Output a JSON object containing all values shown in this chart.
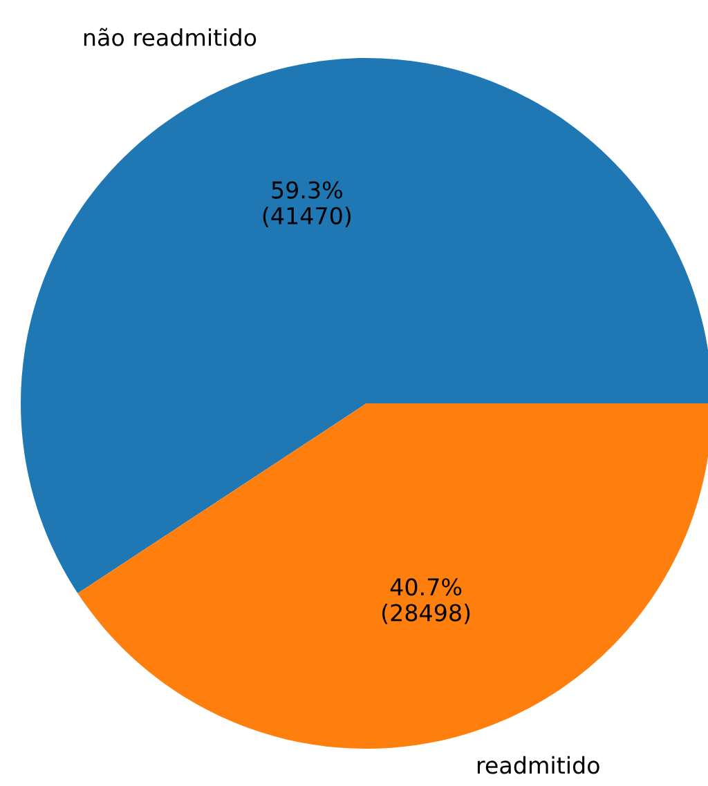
{
  "chart_data": {
    "type": "pie",
    "categories": [
      "não readmitido",
      "readmitido"
    ],
    "values": [
      41470,
      28498
    ],
    "colors": [
      "#1f77b4",
      "#ff7f0e"
    ],
    "value_labels": [
      "59.3%\n(41470)",
      "40.7%\n(28498)"
    ]
  }
}
